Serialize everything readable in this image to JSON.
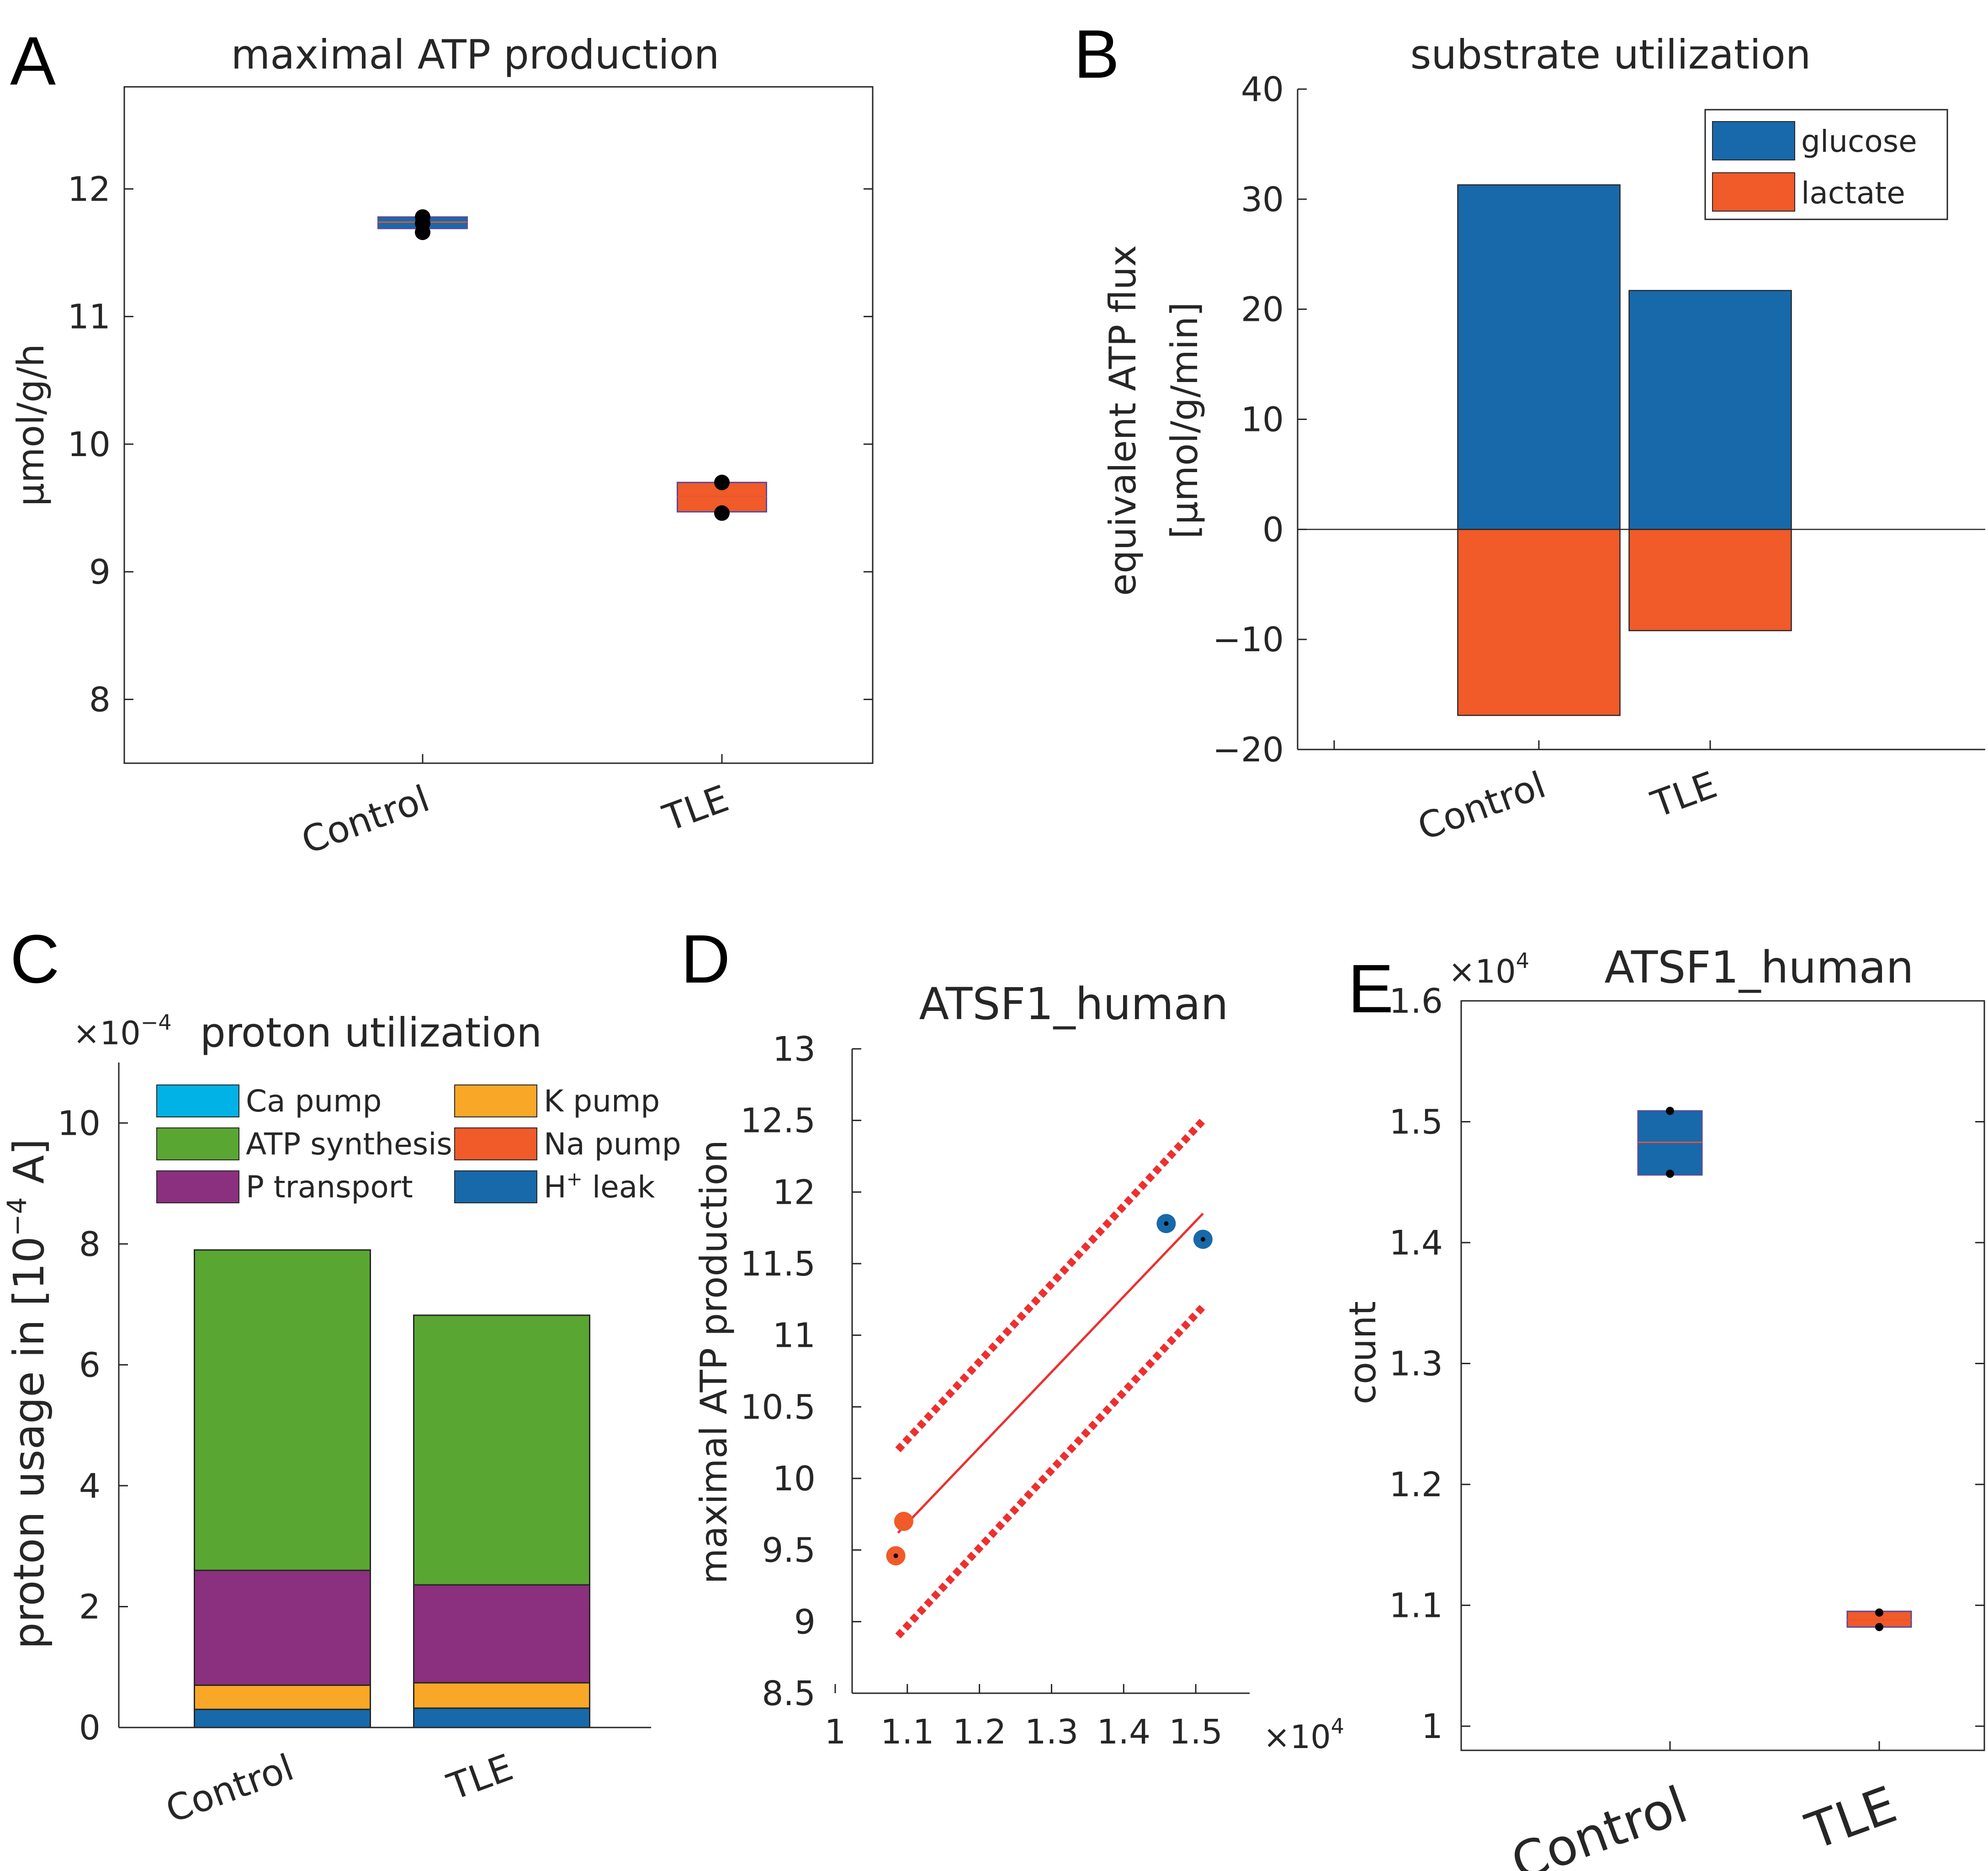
{
  "panels": {
    "A": "A",
    "B": "B",
    "C": "C",
    "D": "D",
    "E": "E"
  },
  "colors": {
    "blue": "#1769aa",
    "orange": "#f15a29",
    "cyan": "#00b2e5",
    "green": "#5aa632",
    "purple": "#8b2f7f",
    "yellow": "#f9a727",
    "red_line": "#ee2f2f",
    "dot": "#000000"
  },
  "chart_data": [
    {
      "id": "A",
      "type": "box",
      "title": "maximal ATP production",
      "ylabel": "µmol/g/h",
      "categories": [
        "Control",
        "TLE"
      ],
      "ylim": [
        7.5,
        12.8
      ],
      "yticks": [
        8,
        9,
        10,
        11,
        12
      ],
      "boxes": [
        {
          "category": "Control",
          "q1": 11.69,
          "median": 11.74,
          "q3": 11.78,
          "points": [
            11.66,
            11.73,
            11.78
          ],
          "color": "blue"
        },
        {
          "category": "TLE",
          "q1": 9.47,
          "median": 9.59,
          "q3": 9.7,
          "points": [
            9.46,
            9.7
          ],
          "color": "orange"
        }
      ]
    },
    {
      "id": "B",
      "type": "bar",
      "title": "substrate utilization",
      "ylabel_line1": "equivalent ATP flux",
      "ylabel_line2": "[µmol/g/min]",
      "categories": [
        "Control",
        "TLE"
      ],
      "ylim": [
        -20,
        40
      ],
      "yticks": [
        -20,
        -10,
        0,
        10,
        20,
        30,
        40
      ],
      "ytick_labels": [
        "−20",
        "−10",
        "0",
        "10",
        "20",
        "30",
        "40"
      ],
      "series": [
        {
          "name": "glucose",
          "values": [
            31.3,
            21.7
          ],
          "color": "blue"
        },
        {
          "name": "lactate",
          "values": [
            -16.9,
            -9.2
          ],
          "color": "orange"
        }
      ],
      "legend": [
        "glucose",
        "lactate"
      ]
    },
    {
      "id": "C",
      "type": "stacked-bar",
      "title": "proton utilization",
      "exponent": "×10",
      "exponent_power": "−4",
      "ylabel": "proton usage in  [10",
      "ylabel_power": "−4",
      "ylabel_end": " A]",
      "categories": [
        "Control",
        "TLE"
      ],
      "ylim": [
        0,
        11
      ],
      "yticks": [
        0,
        2,
        4,
        6,
        8,
        10
      ],
      "series": [
        {
          "name": "H",
          "name_sup": "+",
          "name_rest": " leak",
          "values": [
            0.3,
            0.32
          ],
          "color": "blue"
        },
        {
          "name": "K pump",
          "values": [
            0.4,
            0.42
          ],
          "color": "yellow"
        },
        {
          "name": "P transport",
          "values": [
            1.9,
            1.62
          ],
          "color": "purple"
        },
        {
          "name": "ATP synthesis",
          "values": [
            5.3,
            4.46
          ],
          "color": "green"
        },
        {
          "name": "Na pump",
          "values": [
            0.0,
            0.0
          ],
          "color": "orange"
        },
        {
          "name": "Ca pump",
          "values": [
            0.0,
            0.0
          ],
          "color": "cyan"
        }
      ],
      "legend": [
        {
          "label": "Ca pump",
          "color": "cyan"
        },
        {
          "label": "K pump",
          "color": "yellow"
        },
        {
          "label": "ATP synthesis",
          "color": "green"
        },
        {
          "label": "Na pump",
          "color": "orange"
        },
        {
          "label": "P transport",
          "color": "purple"
        },
        {
          "label": "H",
          "sup": "+",
          "rest": " leak",
          "color": "blue"
        }
      ]
    },
    {
      "id": "D",
      "type": "scatter",
      "title": "ATSF1_human",
      "ylabel": "maximal ATP production",
      "xlim": [
        1.0,
        1.55
      ],
      "ylim": [
        8.5,
        13
      ],
      "xticks": [
        1,
        1.1,
        1.2,
        1.3,
        1.4,
        1.5
      ],
      "yticks": [
        8.5,
        9,
        9.5,
        10,
        10.5,
        11,
        11.5,
        12,
        12.5,
        13
      ],
      "x_exponent": "×10",
      "x_exponent_power": "4",
      "points": [
        {
          "x": 1.084,
          "y": 9.46,
          "color": "orange",
          "center_dot": true
        },
        {
          "x": 1.095,
          "y": 9.7,
          "color": "orange",
          "center_dot": false
        },
        {
          "x": 1.459,
          "y": 11.78,
          "color": "blue",
          "center_dot": true
        },
        {
          "x": 1.51,
          "y": 11.67,
          "color": "blue",
          "center_dot": true
        }
      ],
      "fit": {
        "x1": 1.087,
        "y1": 9.62,
        "x2": 1.51,
        "y2": 11.85
      },
      "ci_upper": {
        "x1": 1.087,
        "y1": 10.2,
        "x2": 1.51,
        "y2": 12.5
      },
      "ci_lower": {
        "x1": 1.087,
        "y1": 8.9,
        "x2": 1.51,
        "y2": 11.2
      }
    },
    {
      "id": "E",
      "type": "box",
      "title": "ATSF1_human",
      "ylabel": "count",
      "categories": [
        "Control",
        "TLE"
      ],
      "ylim": [
        0.98,
        1.6
      ],
      "yticks": [
        1,
        1.1,
        1.2,
        1.3,
        1.4,
        1.5,
        1.6
      ],
      "y_exponent": "×10",
      "y_exponent_power": "4",
      "boxes": [
        {
          "category": "Control",
          "q1": 1.456,
          "median": 1.483,
          "q3": 1.509,
          "points": [
            1.457,
            1.509
          ],
          "color": "blue"
        },
        {
          "category": "TLE",
          "q1": 1.082,
          "median": 1.088,
          "q3": 1.095,
          "points": [
            1.082,
            1.094
          ],
          "color": "orange"
        }
      ]
    }
  ]
}
